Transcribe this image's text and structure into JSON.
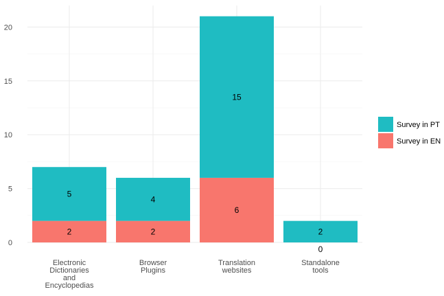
{
  "chart_data": {
    "type": "bar",
    "stacked": true,
    "categories": [
      [
        "Electronic",
        "Dictionaries",
        "and",
        "Encyclopedias"
      ],
      [
        "Browser",
        "Plugins"
      ],
      [
        "Translation",
        "websites"
      ],
      [
        "Standalone",
        "tools"
      ]
    ],
    "series": [
      {
        "name": "Survey in EN",
        "values": [
          2,
          2,
          6,
          0
        ],
        "color": "#F8766D"
      },
      {
        "name": "Survey in PT",
        "values": [
          5,
          4,
          15,
          2
        ],
        "color": "#1FBCC2"
      }
    ],
    "ylim": [
      0,
      22
    ],
    "yticks": [
      0,
      5,
      10,
      15,
      20
    ],
    "grid": true,
    "legend_position": "right",
    "legend_order": [
      "Survey in PT",
      "Survey in EN"
    ],
    "title": "",
    "xlabel": "",
    "ylabel": ""
  }
}
